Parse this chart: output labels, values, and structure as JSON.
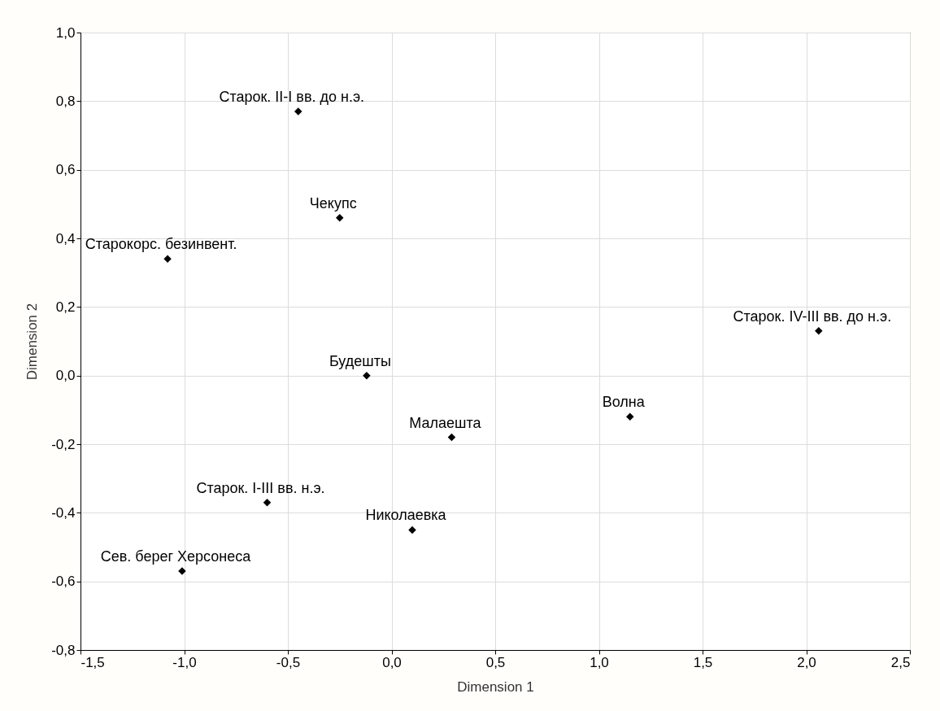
{
  "chart_data": {
    "type": "scatter",
    "xlabel": "Dimension 1",
    "ylabel": "Dimension 2",
    "marker": "diamond",
    "grid": true,
    "xlim": [
      -1.5,
      2.5
    ],
    "ylim": [
      -0.8,
      1.0
    ],
    "xticks": [
      {
        "value": -1.5,
        "label": "-1,5"
      },
      {
        "value": -1.0,
        "label": "-1,0"
      },
      {
        "value": -0.5,
        "label": "-0,5"
      },
      {
        "value": 0,
        "label": "0,0"
      },
      {
        "value": 0.5,
        "label": "0,5"
      },
      {
        "value": 1.0,
        "label": "1,0"
      },
      {
        "value": 1.5,
        "label": "1,5"
      },
      {
        "value": 2.0,
        "label": "2,0"
      },
      {
        "value": 2.5,
        "label": "2,5"
      }
    ],
    "yticks": [
      {
        "value": -0.8,
        "label": "-0,8"
      },
      {
        "value": -0.6,
        "label": "-0,6"
      },
      {
        "value": -0.4,
        "label": "-0,4"
      },
      {
        "value": -0.2,
        "label": "-0,2"
      },
      {
        "value": 0,
        "label": "0,0"
      },
      {
        "value": 0.2,
        "label": "0,2"
      },
      {
        "value": 0.4,
        "label": "0,4"
      },
      {
        "value": 0.6,
        "label": "0,6"
      },
      {
        "value": 0.8,
        "label": "0,8"
      },
      {
        "value": 1.0,
        "label": "1,0"
      }
    ],
    "series": [
      {
        "color": "#000000",
        "x": [
          -0.45,
          -0.25,
          -1.08,
          2.06,
          -0.12,
          1.15,
          0.29,
          -0.6,
          0.1,
          -1.01
        ],
        "values": [
          0.77,
          0.46,
          0.34,
          0.13,
          0.0,
          -0.12,
          -0.18,
          -0.37,
          -0.45,
          -0.57
        ]
      }
    ],
    "annotations": [
      {
        "text": "Старок. II-I вв. до н.э.",
        "x": -0.45,
        "y": 0.77
      },
      {
        "text": "Чекупс",
        "x": -0.25,
        "y": 0.46
      },
      {
        "text": "Старокорс. безинвент.",
        "x": -1.08,
        "y": 0.34
      },
      {
        "text": "Старок. IV-III вв. до н.э.",
        "x": 2.06,
        "y": 0.13
      },
      {
        "text": "Будешты",
        "x": -0.12,
        "y": 0.0
      },
      {
        "text": "Волна",
        "x": 1.15,
        "y": -0.12
      },
      {
        "text": "Малаешта",
        "x": 0.29,
        "y": -0.18
      },
      {
        "text": "Старок. I-III вв. н.э.",
        "x": -0.6,
        "y": -0.37
      },
      {
        "text": "Николаевка",
        "x": 0.1,
        "y": -0.45
      },
      {
        "text": "Сев. берег Херсонеса",
        "x": -1.01,
        "y": -0.57
      }
    ]
  }
}
